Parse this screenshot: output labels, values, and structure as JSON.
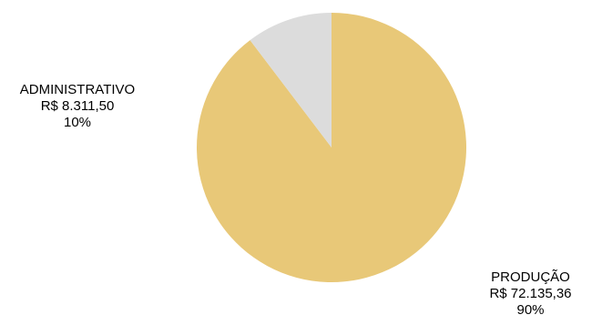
{
  "chart_data": {
    "type": "pie",
    "title": "",
    "slices": [
      {
        "name": "PRODUÇÃO",
        "value_label": "R$ 72.135,36",
        "value": 72135.36,
        "percent_label": "90%",
        "color": "#E8C878"
      },
      {
        "name": "ADMINISTRATIVO",
        "value_label": "R$ 8.311,50",
        "value": 8311.5,
        "percent_label": "10%",
        "color": "#DCDCDC"
      }
    ],
    "start_angle_deg": 0,
    "direction": "clockwise",
    "legend": "none"
  }
}
